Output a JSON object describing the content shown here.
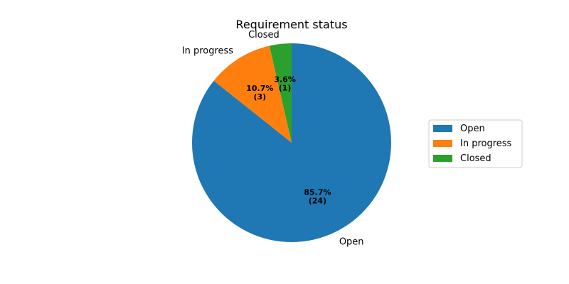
{
  "chart_data": {
    "type": "pie",
    "title": "Requirement status",
    "categories": [
      "Open",
      " In progress",
      " Closed"
    ],
    "values": [
      24,
      3,
      1
    ],
    "percent_labels": [
      "85.7%",
      "10.7%",
      "3.6%"
    ],
    "count_labels": [
      "(24)",
      "(3)",
      "(1)"
    ],
    "colors": [
      "#1f77b4",
      "#ff7f0e",
      "#2ca02c"
    ],
    "start_angle_deg": 90,
    "direction": "clockwise",
    "legend": {
      "placement": "right",
      "entries": [
        "Open",
        " In progress",
        " Closed"
      ]
    }
  }
}
